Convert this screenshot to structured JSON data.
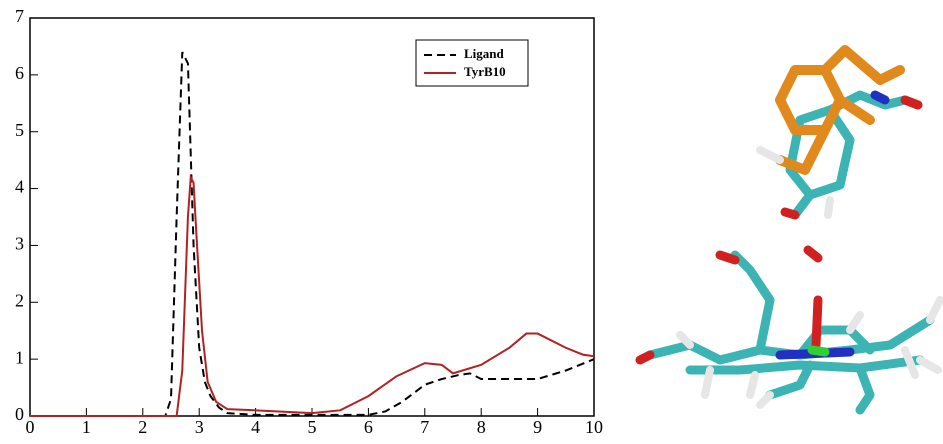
{
  "chart_data": {
    "type": "line",
    "xlim": [
      0,
      10
    ],
    "xticks": [
      0,
      1,
      2,
      3,
      4,
      5,
      6,
      7,
      8,
      9,
      10
    ],
    "ylim": [
      0,
      7
    ],
    "yticks": [
      0,
      1,
      2,
      3,
      4,
      5,
      6,
      7
    ],
    "grid": false,
    "legend": "upper right",
    "series": [
      {
        "name": "Ligand",
        "color": "#000000",
        "dashed": true,
        "x": [
          0,
          2.4,
          2.5,
          2.6,
          2.7,
          2.8,
          2.9,
          3.0,
          3.1,
          3.2,
          3.35,
          3.5,
          4,
          5,
          6,
          6.3,
          6.6,
          7,
          7.3,
          7.6,
          7.8,
          8,
          8.5,
          9,
          9.5,
          10
        ],
        "values": [
          0,
          0,
          0.3,
          3.5,
          6.4,
          6.2,
          3.0,
          1.2,
          0.6,
          0.35,
          0.15,
          0.05,
          0.02,
          0.02,
          0.02,
          0.08,
          0.25,
          0.55,
          0.65,
          0.72,
          0.75,
          0.65,
          0.65,
          0.65,
          0.8,
          1.0
        ]
      },
      {
        "name": "TyrB10",
        "color": "#b22222",
        "dashed": false,
        "x": [
          0,
          2.6,
          2.7,
          2.8,
          2.85,
          2.9,
          2.95,
          3.05,
          3.15,
          3.3,
          3.5,
          4,
          5,
          5.5,
          6,
          6.5,
          7,
          7.3,
          7.5,
          8,
          8.5,
          8.8,
          9,
          9.5,
          9.8,
          10
        ],
        "values": [
          0,
          0,
          0.8,
          3.5,
          4.2,
          4.1,
          3.2,
          1.5,
          0.6,
          0.25,
          0.12,
          0.1,
          0.05,
          0.1,
          0.35,
          0.7,
          0.93,
          0.9,
          0.75,
          0.9,
          1.2,
          1.45,
          1.45,
          1.2,
          1.08,
          1.05
        ]
      }
    ]
  }
}
